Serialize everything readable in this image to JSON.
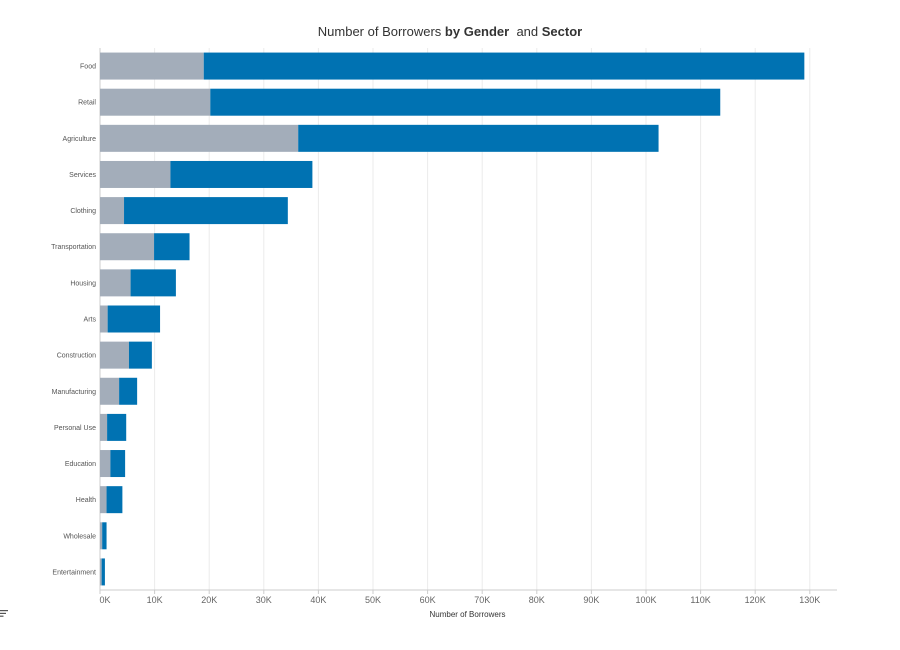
{
  "title": {
    "part1": "Number of Borrowers ",
    "part2": "by Gender",
    "part3": "  and ",
    "part4": "Sector"
  },
  "colors": {
    "female": "#a3adba",
    "male": "#0072b2",
    "grid": "#ebebeb",
    "axis": "#cccccc"
  },
  "icons": {
    "sort": "sort-descending-icon"
  },
  "chart_data": {
    "type": "bar",
    "orientation": "horizontal",
    "stacked": true,
    "categories": [
      "Food",
      "Retail",
      "Agriculture",
      "Services",
      "Clothing",
      "Transportation",
      "Housing",
      "Arts",
      "Construction",
      "Manufacturing",
      "Personal Use",
      "Education",
      "Health",
      "Wholesale",
      "Entertainment"
    ],
    "series": [
      {
        "values": [
          19000,
          20200,
          36300,
          12900,
          4400,
          9900,
          5600,
          1400,
          5300,
          3500,
          1300,
          1900,
          1200,
          400,
          300
        ]
      },
      {
        "values": [
          110000,
          93400,
          66000,
          26000,
          30000,
          6500,
          8300,
          9600,
          4200,
          3300,
          3500,
          2700,
          2900,
          800,
          600
        ]
      }
    ],
    "xlabel": "Number of Borrowers",
    "xlim": [
      0,
      135000
    ],
    "xticks": [
      0,
      10000,
      20000,
      30000,
      40000,
      50000,
      60000,
      70000,
      80000,
      90000,
      100000,
      110000,
      120000,
      130000
    ],
    "xtick_labels": [
      "0K",
      "10K",
      "20K",
      "30K",
      "40K",
      "50K",
      "60K",
      "70K",
      "80K",
      "90K",
      "100K",
      "110K",
      "120K",
      "130K"
    ],
    "grid": true,
    "legend": "none"
  }
}
